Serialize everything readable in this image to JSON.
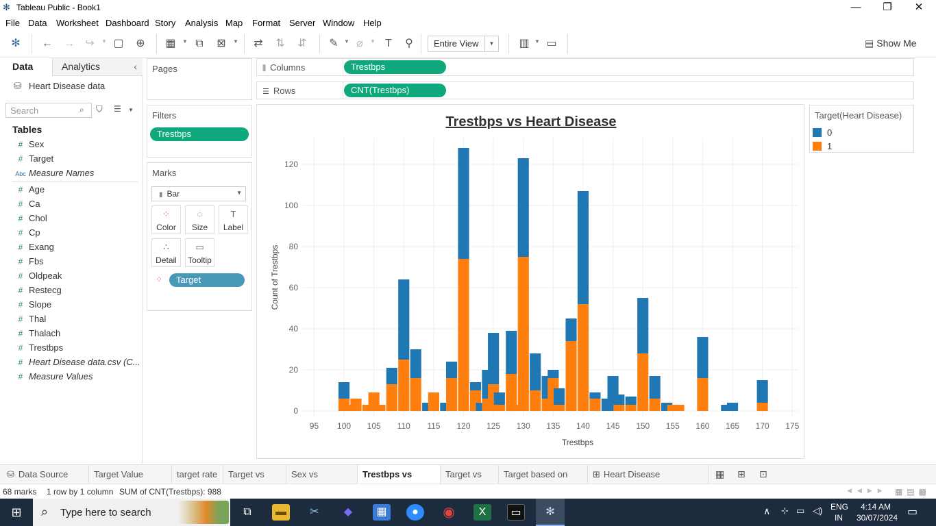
{
  "window": {
    "title": "Tableau Public - Book1",
    "minimize": "—",
    "restore": "❐",
    "close": "✕"
  },
  "menu": [
    "File",
    "Data",
    "Worksheet",
    "Dashboard",
    "Story",
    "Analysis",
    "Map",
    "Format",
    "Server",
    "Window",
    "Help"
  ],
  "toolbar": {
    "fit": "Entire View",
    "show_me": "Show Me"
  },
  "data_pane": {
    "tab_data": "Data",
    "tab_analytics": "Analytics",
    "datasource": "Heart Disease data",
    "search_placeholder": "Search",
    "tables_heading": "Tables",
    "fields": [
      {
        "type": "#",
        "name": "Sex",
        "italic": false
      },
      {
        "type": "#",
        "name": "Target",
        "italic": false
      },
      {
        "type": "Abc",
        "name": "Measure Names",
        "italic": true
      },
      {
        "type": "#",
        "name": "Age",
        "italic": false
      },
      {
        "type": "#",
        "name": "Ca",
        "italic": false
      },
      {
        "type": "#",
        "name": "Chol",
        "italic": false
      },
      {
        "type": "#",
        "name": "Cp",
        "italic": false
      },
      {
        "type": "#",
        "name": "Exang",
        "italic": false
      },
      {
        "type": "#",
        "name": "Fbs",
        "italic": false
      },
      {
        "type": "#",
        "name": "Oldpeak",
        "italic": false
      },
      {
        "type": "#",
        "name": "Restecg",
        "italic": false
      },
      {
        "type": "#",
        "name": "Slope",
        "italic": false
      },
      {
        "type": "#",
        "name": "Thal",
        "italic": false
      },
      {
        "type": "#",
        "name": "Thalach",
        "italic": false
      },
      {
        "type": "#",
        "name": "Trestbps",
        "italic": false
      },
      {
        "type": "#",
        "name": "Heart Disease data.csv (C...",
        "italic": true
      },
      {
        "type": "#",
        "name": "Measure Values",
        "italic": true
      }
    ]
  },
  "cards": {
    "pages": "Pages",
    "filters": "Filters",
    "filter_pill": "Trestbps",
    "marks": "Marks",
    "mark_type": "Bar",
    "mark_buttons": [
      "Color",
      "Size",
      "Label",
      "Detail",
      "Tooltip"
    ],
    "color_pill": "Target"
  },
  "shelves": {
    "columns_label": "Columns",
    "columns_pill": "Trestbps",
    "rows_label": "Rows",
    "rows_pill": "CNT(Trestbps)"
  },
  "legend": {
    "title": "Target(Heart Disease)",
    "items": [
      {
        "label": "0",
        "color": "#1f77b4"
      },
      {
        "label": "1",
        "color": "#ff7f0e"
      }
    ]
  },
  "chart_data": {
    "type": "bar",
    "stacked": true,
    "title": "Trestbps vs Heart Disease",
    "xlabel": "Trestbps",
    "ylabel": "Count of Trestbps",
    "xlim": [
      93,
      176
    ],
    "ylim": [
      -3,
      133
    ],
    "xticks": [
      95,
      100,
      105,
      110,
      115,
      120,
      125,
      130,
      135,
      140,
      145,
      150,
      155,
      160,
      165,
      170,
      175
    ],
    "yticks": [
      0,
      20,
      40,
      60,
      80,
      100,
      120
    ],
    "x": [
      100,
      101,
      102,
      104,
      105,
      106,
      108,
      110,
      112,
      114,
      115,
      117,
      118,
      120,
      122,
      123,
      124,
      125,
      126,
      128,
      129,
      130,
      132,
      134,
      135,
      136,
      138,
      140,
      142,
      144,
      145,
      146,
      148,
      150,
      152,
      154,
      155,
      156,
      160,
      164,
      165,
      170
    ],
    "series": [
      {
        "name": "0",
        "color": "#1f77b4",
        "values": [
          8,
          0,
          0,
          0,
          0,
          0,
          8,
          39,
          14,
          4,
          0,
          4,
          8,
          54,
          4,
          4,
          14,
          25,
          6,
          21,
          0,
          48,
          18,
          11,
          4,
          8,
          11,
          55,
          3,
          6,
          17,
          5,
          4,
          27,
          11,
          4,
          0,
          0,
          20,
          3,
          4,
          11
        ]
      },
      {
        "name": "1",
        "color": "#ff7f0e",
        "values": [
          6,
          3,
          6,
          3,
          9,
          3,
          13,
          25,
          16,
          0,
          9,
          0,
          16,
          74,
          10,
          0,
          6,
          13,
          3,
          18,
          3,
          75,
          10,
          6,
          16,
          3,
          34,
          52,
          6,
          0,
          0,
          3,
          3,
          28,
          6,
          0,
          3,
          3,
          16,
          0,
          0,
          4
        ]
      }
    ]
  },
  "sheet_tabs": [
    {
      "label": "Data Source",
      "active": false
    },
    {
      "label": "Target Value count",
      "active": false
    },
    {
      "label": "target rate",
      "active": false
    },
    {
      "label": "Target vs Age",
      "active": false
    },
    {
      "label": "Sex vs Trestbps",
      "active": false
    },
    {
      "label": "Trestbps vs Target",
      "active": true
    },
    {
      "label": "Target vs Cp",
      "active": false
    },
    {
      "label": "Target based on Sex",
      "active": false
    },
    {
      "label": "Heart Disease Dashboard",
      "active": false
    }
  ],
  "status": {
    "marks": "68 marks",
    "dims": "1 row by 1 column",
    "sum": "SUM of CNT(Trestbps): 988"
  },
  "taskbar": {
    "search_placeholder": "Type here to search",
    "lang": "ENG",
    "region": "IN",
    "time": "4:14 AM",
    "date": "30/07/2024"
  }
}
